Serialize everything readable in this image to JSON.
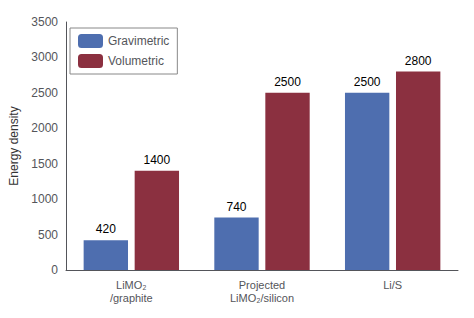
{
  "chart_data": {
    "type": "bar",
    "categories": [
      "LiMO₂\n/graphite",
      "Projected\nLiMO₂/silicon",
      "Li/S"
    ],
    "series": [
      {
        "name": "Gravimetric",
        "color": "#4E6EAF",
        "values": [
          420,
          740,
          2500
        ]
      },
      {
        "name": "Volumetric",
        "color": "#8B3040",
        "values": [
          1400,
          2500,
          2800
        ]
      }
    ],
    "ylabel": "Energy density",
    "ylim": [
      0,
      3500
    ],
    "yticks": [
      0,
      500,
      1000,
      1500,
      2000,
      2500,
      3000,
      3500
    ],
    "grid": false,
    "legend": "upper left",
    "data_labels": true
  }
}
